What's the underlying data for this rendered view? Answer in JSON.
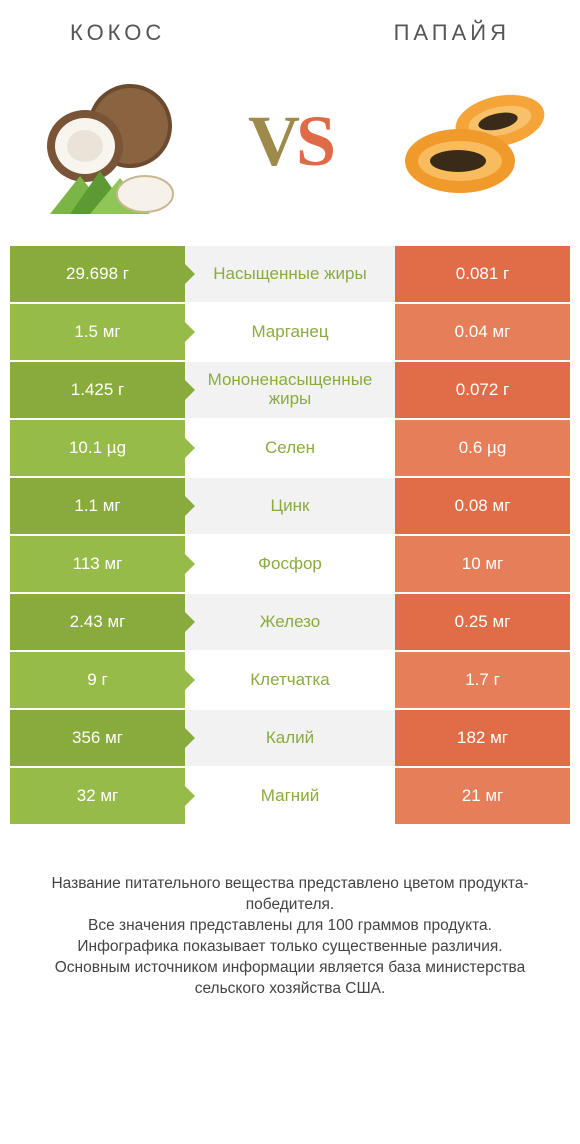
{
  "titles": {
    "left": "КОКОС",
    "right": "ПАПАЙЯ"
  },
  "vs": {
    "v": "V",
    "s": "S"
  },
  "colors": {
    "left_odd": "#88ab3c",
    "left_even": "#97bb49",
    "right_odd": "#e16d48",
    "right_even": "#e67e5a",
    "mid_odd": "#f2f2f2",
    "mid_even": "#ffffff",
    "winL_text": "#8aab3e",
    "winR_text": "#e16d48"
  },
  "rows": [
    {
      "left": "29.698 г",
      "label": "Насыщенные жиры",
      "right": "0.081 г",
      "winner": "L"
    },
    {
      "left": "1.5 мг",
      "label": "Марганец",
      "right": "0.04 мг",
      "winner": "L"
    },
    {
      "left": "1.425 г",
      "label": "Мононенасыщенные жиры",
      "right": "0.072 г",
      "winner": "L"
    },
    {
      "left": "10.1 µg",
      "label": "Селен",
      "right": "0.6 µg",
      "winner": "L"
    },
    {
      "left": "1.1 мг",
      "label": "Цинк",
      "right": "0.08 мг",
      "winner": "L"
    },
    {
      "left": "113 мг",
      "label": "Фосфор",
      "right": "10 мг",
      "winner": "L"
    },
    {
      "left": "2.43 мг",
      "label": "Железо",
      "right": "0.25 мг",
      "winner": "L"
    },
    {
      "left": "9 г",
      "label": "Клетчатка",
      "right": "1.7 г",
      "winner": "L"
    },
    {
      "left": "356 мг",
      "label": "Калий",
      "right": "182 мг",
      "winner": "L"
    },
    {
      "left": "32 мг",
      "label": "Магний",
      "right": "21 мг",
      "winner": "L"
    }
  ],
  "footnote": {
    "l1": "Название питательного вещества представлено цветом продукта-победителя.",
    "l2": "Все значения представлены для 100 граммов продукта.",
    "l3": "Инфографика показывает только существенные различия.",
    "l4": "Основным источником информации является база министерства сельского хозяйства США."
  }
}
